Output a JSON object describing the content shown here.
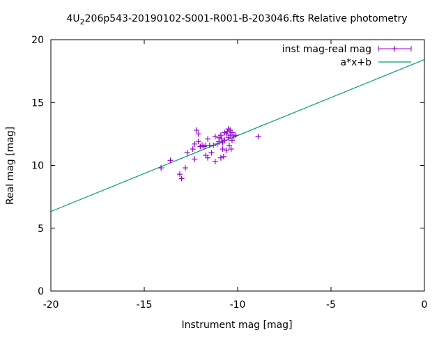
{
  "chart_data": {
    "type": "scatter",
    "title_main": "4U",
    "title_sub": "2",
    "title_rest": "206p543-20190102-S001-R001-B-203046.fts Relative photometry",
    "xlabel": "Instrument mag [mag]",
    "ylabel": "Real mag [mag]",
    "xlim": [
      -20,
      0
    ],
    "ylim": [
      0,
      20
    ],
    "xticks": [
      -20,
      -15,
      -10,
      -5,
      0
    ],
    "yticks": [
      0,
      5,
      10,
      15,
      20
    ],
    "grid": false,
    "legend_position": "top-right",
    "series": [
      {
        "name": "inst mag-real mag",
        "color": "#9400d3",
        "marker": "plus",
        "points": [
          [
            -14.1,
            9.8
          ],
          [
            -13.6,
            10.4
          ],
          [
            -13.1,
            9.3
          ],
          [
            -13.0,
            8.95
          ],
          [
            -12.8,
            9.8
          ],
          [
            -12.7,
            11.0
          ],
          [
            -12.4,
            11.3
          ],
          [
            -12.3,
            10.5
          ],
          [
            -12.3,
            11.7
          ],
          [
            -12.2,
            12.8
          ],
          [
            -12.1,
            12.5
          ],
          [
            -12.1,
            11.9
          ],
          [
            -12.0,
            11.5
          ],
          [
            -11.9,
            11.6
          ],
          [
            -11.8,
            11.5
          ],
          [
            -11.7,
            11.6
          ],
          [
            -11.7,
            10.8
          ],
          [
            -11.6,
            12.1
          ],
          [
            -11.6,
            10.6
          ],
          [
            -11.5,
            11.6
          ],
          [
            -11.4,
            11.0
          ],
          [
            -11.3,
            11.6
          ],
          [
            -11.2,
            10.3
          ],
          [
            -11.2,
            12.3
          ],
          [
            -11.1,
            11.7
          ],
          [
            -11.0,
            11.9
          ],
          [
            -11.0,
            12.2
          ],
          [
            -10.9,
            12.4
          ],
          [
            -10.9,
            10.6
          ],
          [
            -10.85,
            12.1
          ],
          [
            -10.8,
            11.8
          ],
          [
            -10.8,
            11.3
          ],
          [
            -10.75,
            10.7
          ],
          [
            -10.7,
            12.6
          ],
          [
            -10.7,
            12.0
          ],
          [
            -10.6,
            12.5
          ],
          [
            -10.6,
            11.2
          ],
          [
            -10.55,
            12.7
          ],
          [
            -10.5,
            12.9
          ],
          [
            -10.5,
            12.2
          ],
          [
            -10.45,
            11.6
          ],
          [
            -10.4,
            12.8
          ],
          [
            -10.4,
            12.4
          ],
          [
            -10.35,
            11.3
          ],
          [
            -10.3,
            12.0
          ],
          [
            -10.3,
            12.6
          ],
          [
            -10.2,
            12.3
          ],
          [
            -10.1,
            12.4
          ],
          [
            -8.9,
            12.3
          ]
        ]
      },
      {
        "name": "a*x+b",
        "color": "#009e73",
        "type": "line",
        "points": [
          [
            -20,
            6.33
          ],
          [
            0,
            18.42
          ]
        ]
      }
    ]
  }
}
